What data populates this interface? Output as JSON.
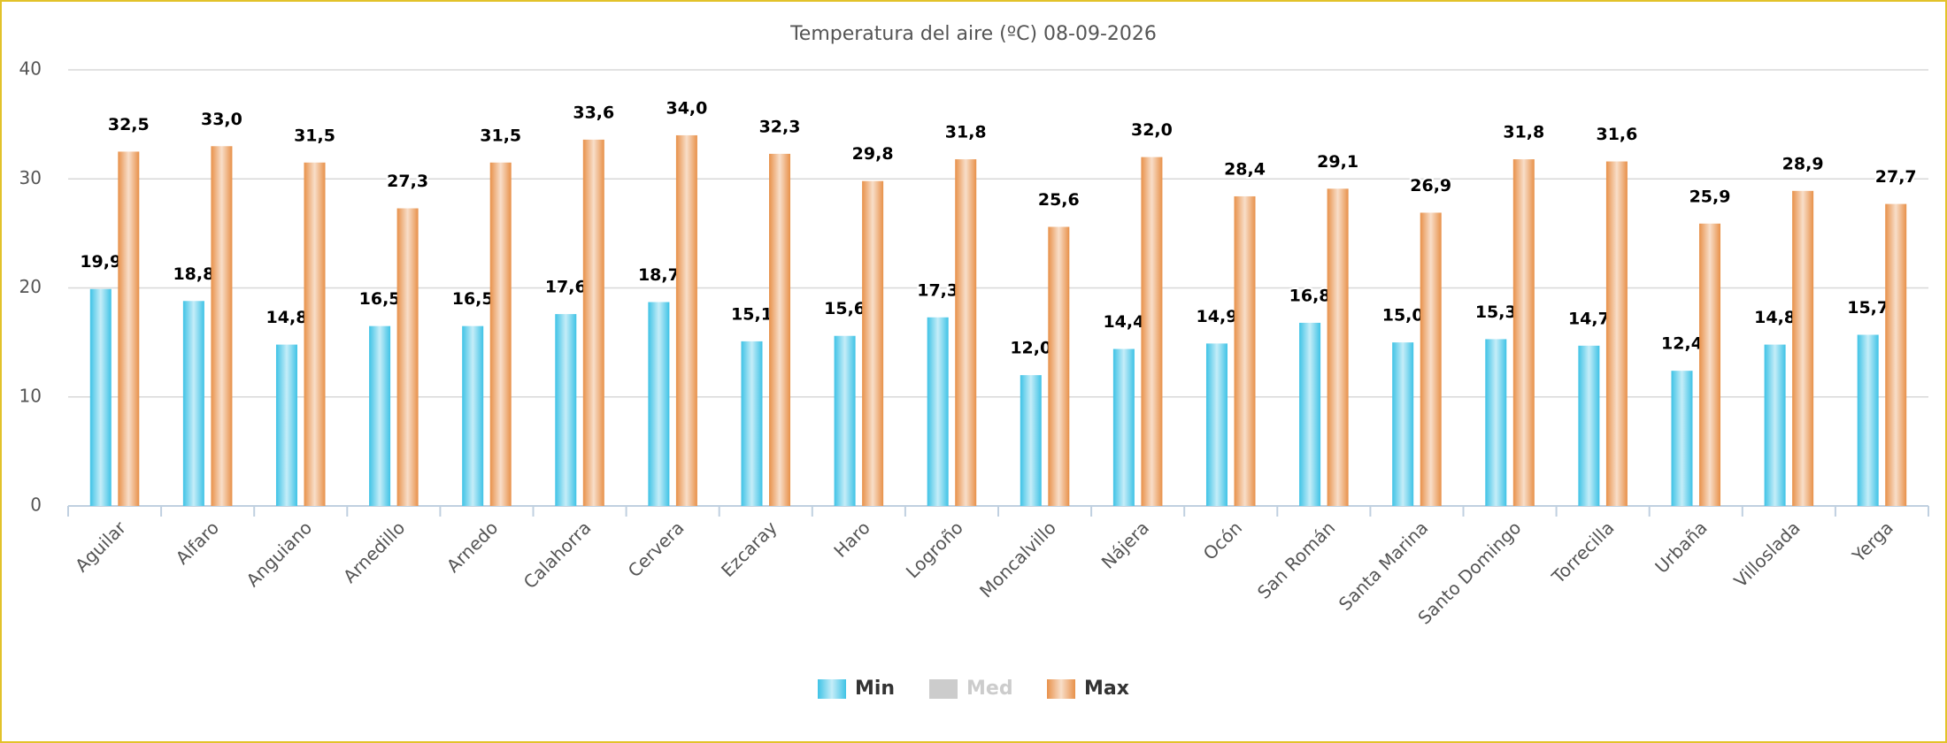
{
  "chart_data": {
    "type": "bar",
    "title": "Temperatura del aire (ºC) 08-09-2026",
    "categories": [
      "Aguilar",
      "Alfaro",
      "Anguiano",
      "Arnedillo",
      "Arnedo",
      "Calahorra",
      "Cervera",
      "Ezcaray",
      "Haro",
      "Logroño",
      "Moncalvillo",
      "Nájera",
      "Ocón",
      "San Román",
      "Santa Marina",
      "Santo Domingo",
      "Torrecilla",
      "Urbaña",
      "Villoslada",
      "Yerga"
    ],
    "series": [
      {
        "name": "Min",
        "color": "#3fc3e6",
        "hidden": false,
        "values": [
          19.9,
          18.8,
          14.8,
          16.5,
          16.5,
          17.6,
          18.7,
          15.1,
          15.6,
          17.3,
          12.0,
          14.4,
          14.9,
          16.8,
          15.0,
          15.3,
          14.7,
          12.4,
          14.8,
          15.7
        ],
        "value_labels": [
          "19,9",
          "18,8",
          "14,8",
          "16,5",
          "16,5",
          "17,6",
          "18,7",
          "15,1",
          "15,6",
          "17,3",
          "12,0",
          "14,4",
          "14,9",
          "16,8",
          "15,0",
          "15,3",
          "14,7",
          "12,4",
          "14,8",
          "15,7"
        ]
      },
      {
        "name": "Med",
        "color": "#cccccc",
        "hidden": true,
        "values": [
          null,
          null,
          null,
          null,
          null,
          null,
          null,
          null,
          null,
          null,
          null,
          null,
          null,
          null,
          null,
          null,
          null,
          null,
          null,
          null
        ]
      },
      {
        "name": "Max",
        "color": "#e8914a",
        "hidden": false,
        "values": [
          32.5,
          33.0,
          31.5,
          27.3,
          31.5,
          33.6,
          34.0,
          32.3,
          29.8,
          31.8,
          25.6,
          32.0,
          28.4,
          29.1,
          26.9,
          31.8,
          31.6,
          25.9,
          28.9,
          27.7
        ],
        "value_labels": [
          "32,5",
          "33,0",
          "31,5",
          "27,3",
          "31,5",
          "33,6",
          "34,0",
          "32,3",
          "29,8",
          "31,8",
          "25,6",
          "32,0",
          "28,4",
          "29,1",
          "26,9",
          "31,8",
          "31,6",
          "25,9",
          "28,9",
          "27,7"
        ]
      }
    ],
    "ylim": [
      0,
      40
    ],
    "yticks": [
      0,
      10,
      20,
      30,
      40
    ],
    "grid": true,
    "legend": "bottom"
  }
}
